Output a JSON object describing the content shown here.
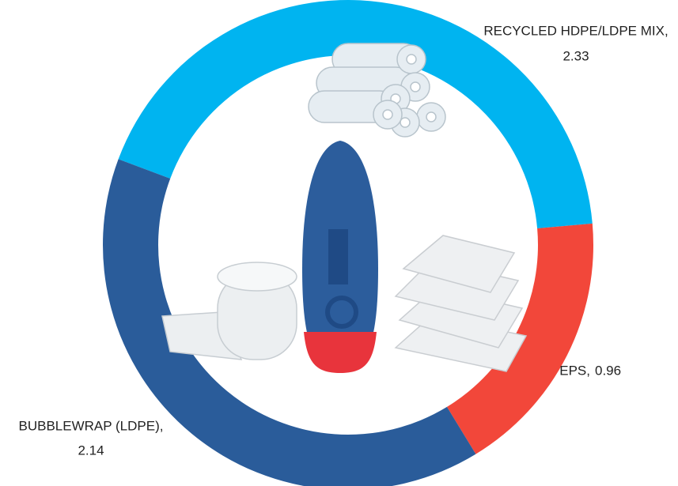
{
  "chart_data": {
    "type": "donut",
    "categories": [
      "RECYCLED HDPE/LDPE MIX,",
      "EPS,",
      "BUBBLEWRAP (LDPE),"
    ],
    "values": [
      2.33,
      0.96,
      2.14
    ],
    "colors": [
      "#00b4f0",
      "#f2473a",
      "#2a5c9a"
    ]
  }
}
